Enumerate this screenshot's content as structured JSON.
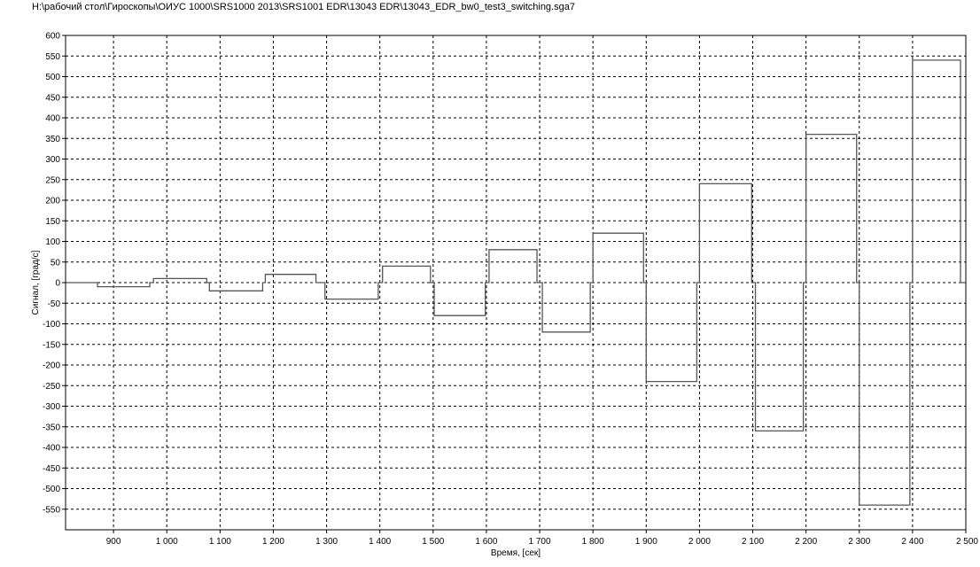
{
  "window": {
    "file_path": "H:\\рабочий стол\\Гироскопы\\ОИУС 1000\\SRS1000 2013\\SRS1001 EDR\\13043 EDR\\13043_EDR_bw0_test3_switching.sga7"
  },
  "chart_data": {
    "type": "line",
    "xlabel": "Время, [сек]",
    "ylabel": "Сигнал, [град/с]",
    "xlim": [
      810,
      2500
    ],
    "ylim": [
      -600,
      600
    ],
    "x_ticks": [
      900,
      1000,
      1100,
      1200,
      1300,
      1400,
      1500,
      1600,
      1700,
      1800,
      1900,
      2000,
      2100,
      2200,
      2300,
      2400,
      2500
    ],
    "x_tick_labels": [
      "900",
      "1 000",
      "1 100",
      "1 200",
      "1 300",
      "1 400",
      "1 500",
      "1 600",
      "1 700",
      "1 800",
      "1 900",
      "2 000",
      "2 100",
      "2 200",
      "2 300",
      "2 400",
      "2 500"
    ],
    "y_ticks": [
      600,
      550,
      500,
      450,
      400,
      350,
      300,
      250,
      200,
      150,
      100,
      50,
      0,
      -50,
      -100,
      -150,
      -200,
      -250,
      -300,
      -350,
      -400,
      -450,
      -500,
      -550
    ],
    "grid": true,
    "series": [
      {
        "color": "#555555",
        "points": [
          [
            810,
            0
          ],
          [
            870,
            0
          ],
          [
            870,
            -10
          ],
          [
            968,
            -10
          ],
          [
            968,
            0
          ],
          [
            975,
            0
          ],
          [
            975,
            10
          ],
          [
            1075,
            10
          ],
          [
            1075,
            0
          ],
          [
            1080,
            0
          ],
          [
            1080,
            -20
          ],
          [
            1180,
            -20
          ],
          [
            1180,
            0
          ],
          [
            1185,
            0
          ],
          [
            1185,
            20
          ],
          [
            1280,
            20
          ],
          [
            1280,
            0
          ],
          [
            1297,
            0
          ],
          [
            1297,
            -40
          ],
          [
            1397,
            -40
          ],
          [
            1397,
            0
          ],
          [
            1405,
            0
          ],
          [
            1405,
            40
          ],
          [
            1495,
            40
          ],
          [
            1495,
            0
          ],
          [
            1502,
            0
          ],
          [
            1502,
            -80
          ],
          [
            1598,
            -80
          ],
          [
            1598,
            0
          ],
          [
            1605,
            0
          ],
          [
            1605,
            80
          ],
          [
            1695,
            80
          ],
          [
            1695,
            0
          ],
          [
            1705,
            0
          ],
          [
            1705,
            -120
          ],
          [
            1795,
            -120
          ],
          [
            1795,
            0
          ],
          [
            1800,
            0
          ],
          [
            1800,
            120
          ],
          [
            1895,
            120
          ],
          [
            1895,
            0
          ],
          [
            1900,
            0
          ],
          [
            1900,
            -240
          ],
          [
            1995,
            -240
          ],
          [
            1995,
            0
          ],
          [
            2000,
            0
          ],
          [
            2000,
            240
          ],
          [
            2098,
            240
          ],
          [
            2098,
            0
          ],
          [
            2105,
            0
          ],
          [
            2105,
            -360
          ],
          [
            2195,
            -360
          ],
          [
            2195,
            0
          ],
          [
            2200,
            0
          ],
          [
            2200,
            360
          ],
          [
            2295,
            360
          ],
          [
            2295,
            0
          ],
          [
            2300,
            0
          ],
          [
            2300,
            -540
          ],
          [
            2395,
            -540
          ],
          [
            2395,
            0
          ],
          [
            2400,
            0
          ],
          [
            2400,
            540
          ],
          [
            2490,
            540
          ],
          [
            2490,
            0
          ],
          [
            2500,
            0
          ]
        ]
      }
    ]
  },
  "colors": {
    "background": "#ffffff",
    "grid": "#000000",
    "frame": "#000000",
    "line": "#555555"
  }
}
